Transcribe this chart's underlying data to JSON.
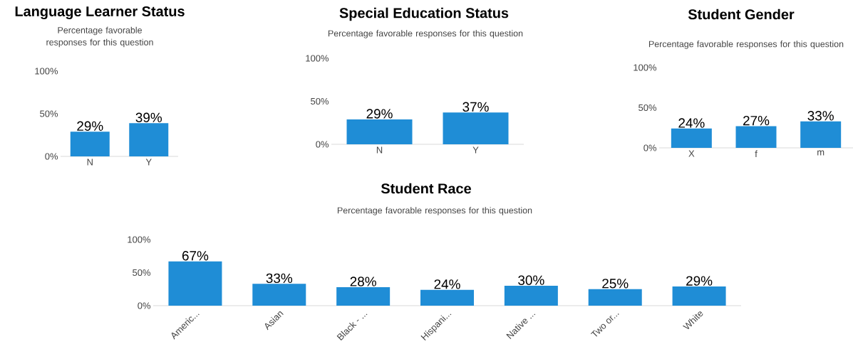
{
  "chart_data": [
    {
      "type": "bar",
      "title": "Language Learner Status",
      "subtitle": "Percentage favorable responses for this question",
      "categories": [
        "N",
        "Y"
      ],
      "values": [
        29,
        39
      ],
      "value_labels": [
        "29%",
        "39%"
      ],
      "color": "#1f8dd6",
      "ylim": [
        0,
        100
      ],
      "yticks": [
        {
          "value": 0,
          "label": "0%"
        },
        {
          "value": 50,
          "label": "50%"
        },
        {
          "value": 100,
          "label": "100%"
        }
      ]
    },
    {
      "type": "bar",
      "title": "Special Education Status",
      "subtitle": "Percentage favorable responses for this question",
      "categories": [
        "N",
        "Y"
      ],
      "values": [
        29,
        37
      ],
      "value_labels": [
        "29%",
        "37%"
      ],
      "color": "#1f8dd6",
      "ylim": [
        0,
        100
      ],
      "yticks": [
        {
          "value": 0,
          "label": "0%"
        },
        {
          "value": 50,
          "label": "50%"
        },
        {
          "value": 100,
          "label": "100%"
        }
      ]
    },
    {
      "type": "bar",
      "title": "Student Gender",
      "subtitle": "Percentage favorable responses for this question",
      "categories": [
        "X",
        "f",
        "m"
      ],
      "values": [
        24,
        27,
        33
      ],
      "value_labels": [
        "24%",
        "27%",
        "33%"
      ],
      "color": "#1f8dd6",
      "ylim": [
        0,
        100
      ],
      "yticks": [
        {
          "value": 0,
          "label": "0%"
        },
        {
          "value": 50,
          "label": "50%"
        },
        {
          "value": 100,
          "label": "100%"
        }
      ]
    },
    {
      "type": "bar",
      "title": "Student Race",
      "subtitle": "Percentage favorable responses for this question",
      "categories": [
        "Americ...",
        "Asian",
        "Black - ...",
        "Hispani...",
        "Native ...",
        "Two or...",
        "White"
      ],
      "values": [
        67,
        33,
        28,
        24,
        30,
        25,
        29
      ],
      "value_labels": [
        "67%",
        "33%",
        "28%",
        "24%",
        "30%",
        "25%",
        "29%"
      ],
      "color": "#1f8dd6",
      "ylim": [
        0,
        100
      ],
      "yticks": [
        {
          "value": 0,
          "label": "0%"
        },
        {
          "value": 50,
          "label": "50%"
        },
        {
          "value": 100,
          "label": "100%"
        }
      ]
    }
  ]
}
